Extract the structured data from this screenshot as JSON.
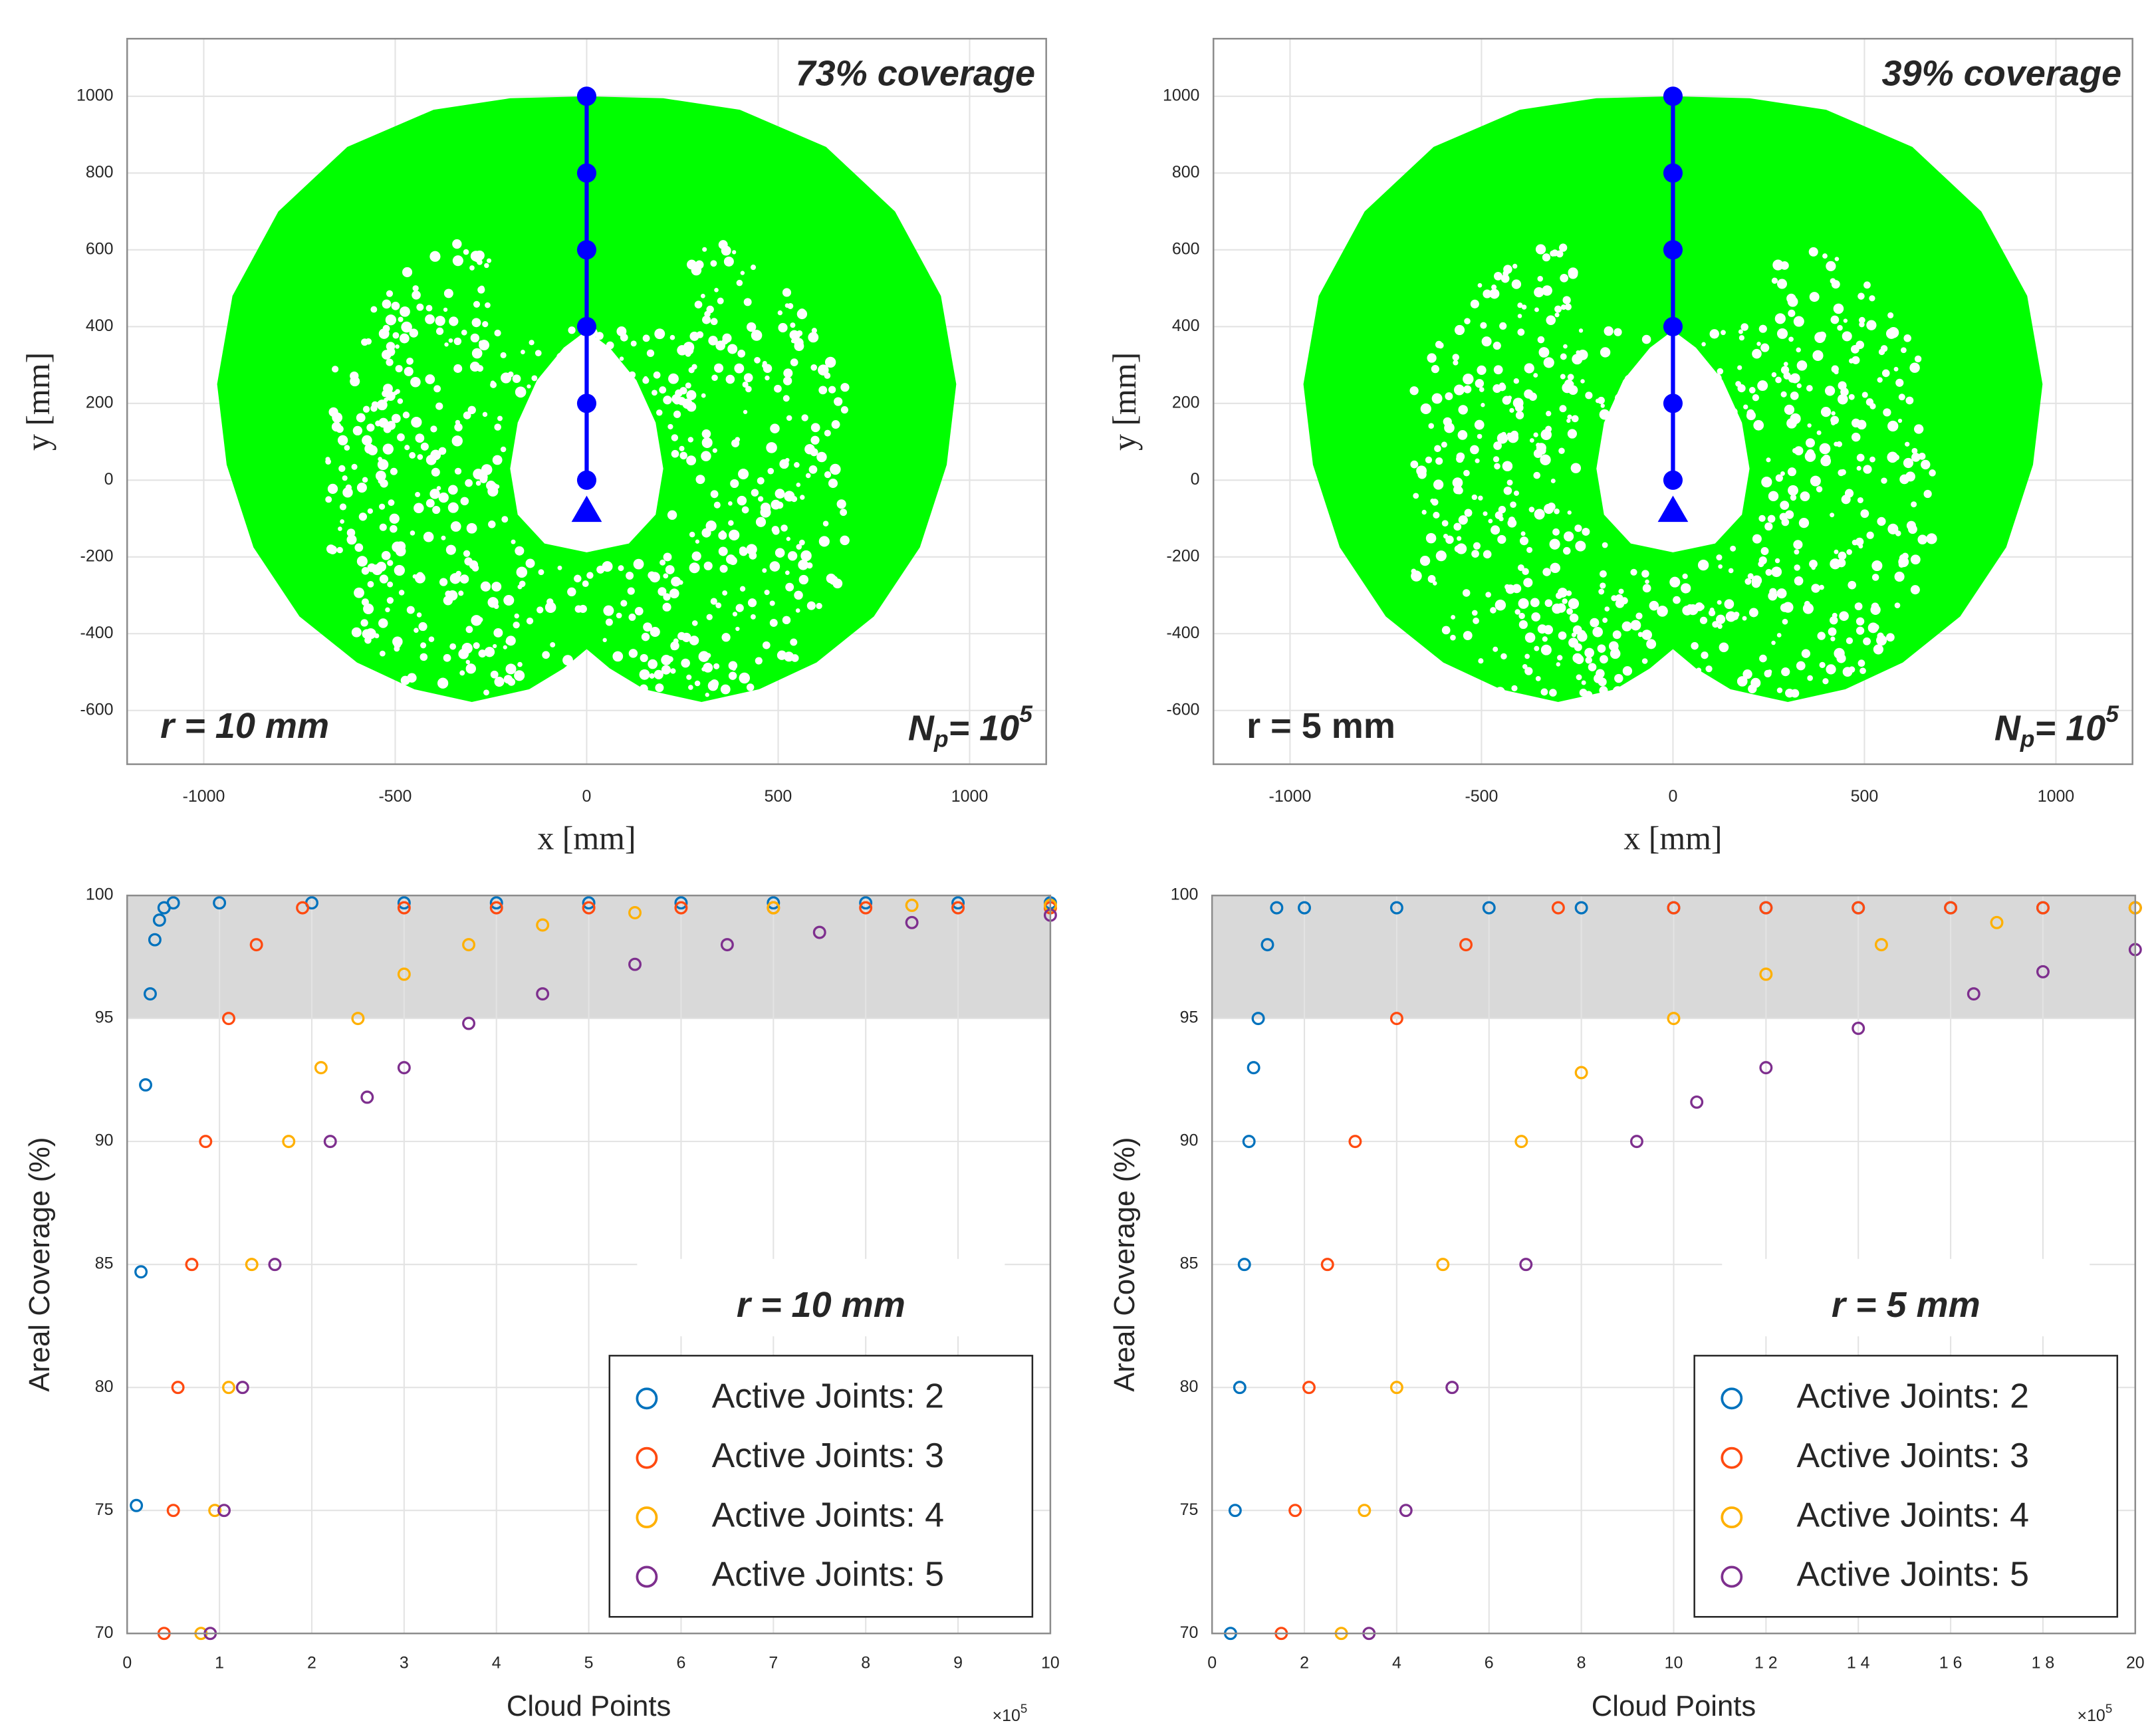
{
  "chart_data": [
    {
      "type": "line",
      "xlim": [
        -1200,
        1200
      ],
      "ylim": [
        -740,
        1150
      ],
      "xticks": [
        -1000,
        -500,
        0,
        500,
        1000
      ],
      "yticks": [
        -600,
        -400,
        -200,
        0,
        200,
        400,
        600,
        800,
        1000
      ],
      "grid": true,
      "xlabel": "x [mm]",
      "ylabel": "y [mm]",
      "region_color": "#00ff00",
      "series": [
        {
          "color": "#0000ff",
          "x": [
            0,
            0,
            0,
            0,
            0,
            0
          ],
          "values": [
            1000,
            800,
            600,
            400,
            200,
            0
          ]
        }
      ],
      "base_marker": {
        "x": 0,
        "y": -80
      },
      "annotations": [
        "73% coverage",
        "r = 10 mm"
      ],
      "np_label": {
        "base": "N",
        "sub": "p",
        "mid": "= 10",
        "sup": "5"
      }
    },
    {
      "type": "line",
      "xlim": [
        -1200,
        1200
      ],
      "ylim": [
        -740,
        1150
      ],
      "xticks": [
        -1000,
        -500,
        0,
        500,
        1000
      ],
      "yticks": [
        -600,
        -400,
        -200,
        0,
        200,
        400,
        600,
        800,
        1000
      ],
      "grid": true,
      "xlabel": "x [mm]",
      "ylabel": "y [mm]",
      "region_color": "#00ff00",
      "series": [
        {
          "color": "#0000ff",
          "x": [
            0,
            0,
            0,
            0,
            0,
            0
          ],
          "values": [
            1000,
            800,
            600,
            400,
            200,
            0
          ]
        }
      ],
      "base_marker": {
        "x": 0,
        "y": -80
      },
      "annotations": [
        "39% coverage",
        "r = 5 mm"
      ],
      "np_label": {
        "base": "N",
        "sub": "p",
        "mid": "= 10",
        "sup": "5"
      }
    },
    {
      "type": "scatter",
      "xlim": [
        0,
        10
      ],
      "ylim": [
        70,
        100
      ],
      "xticks": [
        0,
        1,
        2,
        3,
        4,
        5,
        6,
        7,
        8,
        9,
        10
      ],
      "yticks": [
        70,
        75,
        80,
        85,
        90,
        95,
        100
      ],
      "grid": true,
      "xlabel": "Cloud Points",
      "ylabel": "Areal Coverage (%)",
      "x_multiplier": {
        "base": "×10",
        "sup": "5"
      },
      "band": [
        95,
        100
      ],
      "band_color": "#d9d9d9",
      "annotations": [
        "r = 10 mm"
      ],
      "legend": "lower right",
      "series": [
        {
          "name": "Active Joints: 2",
          "color": "#0072bd",
          "x": [
            0.1,
            0.15,
            0.2,
            0.25,
            0.3,
            0.35,
            0.4,
            0.5,
            1,
            2,
            3,
            4,
            5,
            6,
            7,
            8,
            9,
            10
          ],
          "values": [
            75.2,
            84.7,
            92.3,
            96,
            98.2,
            99,
            99.5,
            99.7,
            99.7,
            99.7,
            99.7,
            99.7,
            99.7,
            99.7,
            99.7,
            99.7,
            99.7,
            99.7
          ]
        },
        {
          "name": "Active Joints: 3",
          "color": "#ff4a10",
          "x": [
            0.4,
            0.5,
            0.55,
            0.7,
            0.85,
            1.1,
            1.4,
            1.9,
            3,
            4,
            5,
            6,
            7,
            8,
            9,
            10
          ],
          "values": [
            70,
            75,
            80,
            85,
            90,
            95,
            98,
            99.5,
            99.5,
            99.5,
            99.5,
            99.5,
            99.5,
            99.5,
            99.5,
            99.5
          ]
        },
        {
          "name": "Active Joints: 4",
          "color": "#ffb000",
          "x": [
            0.8,
            0.95,
            1.1,
            1.35,
            1.75,
            2.1,
            2.5,
            3,
            3.7,
            4.5,
            5.5,
            7,
            8.5,
            10
          ],
          "values": [
            70,
            75,
            80,
            85,
            90,
            93,
            95,
            96.8,
            98,
            98.8,
            99.3,
            99.5,
            99.6,
            99.6
          ]
        },
        {
          "name": "Active Joints: 5",
          "color": "#7e2f8e",
          "x": [
            0.9,
            1.05,
            1.25,
            1.6,
            2.2,
            2.6,
            3,
            3.7,
            4.5,
            5.5,
            6.5,
            7.5,
            8.5,
            10
          ],
          "values": [
            70,
            75,
            80,
            85,
            90,
            91.8,
            93,
            94.8,
            96,
            97.2,
            98,
            98.5,
            98.9,
            99.2
          ]
        }
      ]
    },
    {
      "type": "scatter",
      "xlim": [
        0,
        20
      ],
      "ylim": [
        70,
        100
      ],
      "xticks": [
        0,
        2,
        4,
        6,
        8,
        10,
        {
          "value": 12,
          "label": "1 2"
        },
        {
          "value": 14,
          "label": "1 4"
        },
        {
          "value": 16,
          "label": "1 6"
        },
        {
          "value": 18,
          "label": "1 8"
        },
        20
      ],
      "yticks": [
        70,
        75,
        80,
        85,
        90,
        95,
        100
      ],
      "grid": true,
      "xlabel": "Cloud Points",
      "ylabel": "Areal Coverage (%)",
      "x_multiplier": {
        "base": "×10",
        "sup": "5"
      },
      "band": [
        95,
        100
      ],
      "band_color": "#d9d9d9",
      "annotations": [
        "r = 5 mm"
      ],
      "legend": "lower right",
      "series": [
        {
          "name": "Active Joints: 2",
          "color": "#0072bd",
          "x": [
            0.4,
            0.5,
            0.6,
            0.7,
            0.8,
            0.9,
            1,
            1.2,
            1.4,
            2,
            4,
            6,
            8,
            10,
            12,
            14,
            16,
            18,
            20
          ],
          "values": [
            70,
            75,
            80,
            85,
            90,
            93,
            95,
            98,
            99.5,
            99.5,
            99.5,
            99.5,
            99.5,
            99.5,
            99.5,
            99.5,
            99.5,
            99.5,
            99.5
          ]
        },
        {
          "name": "Active Joints: 3",
          "color": "#ff4a10",
          "x": [
            1.5,
            1.8,
            2.1,
            2.5,
            3.1,
            4,
            5.5,
            7.5,
            10,
            12,
            14,
            16,
            18,
            20
          ],
          "values": [
            70,
            75,
            80,
            85,
            90,
            95,
            98,
            99.5,
            99.5,
            99.5,
            99.5,
            99.5,
            99.5,
            99.5
          ]
        },
        {
          "name": "Active Joints: 4",
          "color": "#ffb000",
          "x": [
            2.8,
            3.3,
            4,
            5,
            6.7,
            8,
            10,
            12,
            14.5,
            17,
            20
          ],
          "values": [
            70,
            75,
            80,
            85,
            90,
            92.8,
            95,
            96.8,
            98,
            98.9,
            99.5
          ]
        },
        {
          "name": "Active Joints: 5",
          "color": "#7e2f8e",
          "x": [
            3.4,
            4.2,
            5.2,
            6.8,
            9.2,
            10.5,
            12,
            14,
            16.5,
            18,
            20
          ],
          "values": [
            70,
            75,
            80,
            85,
            90,
            91.6,
            93,
            94.6,
            96,
            96.9,
            97.8
          ]
        }
      ]
    }
  ]
}
